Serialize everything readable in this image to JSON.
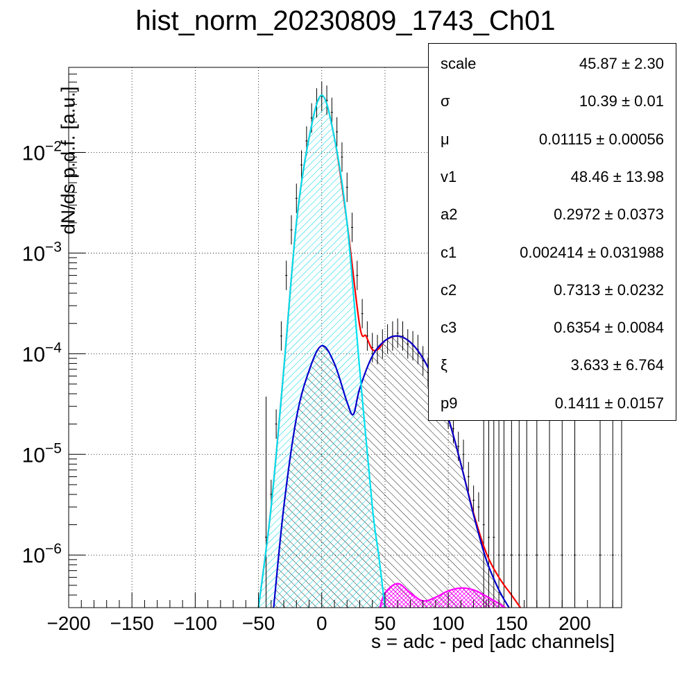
{
  "title": "hist_norm_20230809_1743_Ch01",
  "chart_data": {
    "type": "area",
    "title": "hist_norm_20230809_1743_Ch01",
    "xlabel": "s = adc - ped [adc channels]",
    "ylabel": "dN/ds p.d.f. [a.u.]",
    "xlim": [
      -200,
      237
    ],
    "ylim": [
      3e-07,
      0.07
    ],
    "yscale": "log",
    "grid": true,
    "x_ticks": [
      -200,
      -150,
      -100,
      -50,
      0,
      50,
      100,
      150,
      200
    ],
    "x_tick_labels": [
      "−200",
      "−150",
      "−100",
      "−50",
      "0",
      "50",
      "100",
      "150",
      "200"
    ],
    "y_ticks": [
      1e-06,
      1e-05,
      0.0001,
      0.001,
      0.01
    ],
    "y_tick_labels": [
      {
        "base": "10",
        "exp": "−6"
      },
      {
        "base": "10",
        "exp": "−5"
      },
      {
        "base": "10",
        "exp": "−4"
      },
      {
        "base": "10",
        "exp": "−3"
      },
      {
        "base": "10",
        "exp": "−2"
      }
    ],
    "colors": {
      "total_fit": "#ff0000",
      "pedestal": "#00e0f0",
      "signal": "#0000cc",
      "secondary": "#ff00ff",
      "data": "#000000"
    },
    "series": [
      {
        "key": "pedestal",
        "x": [
          -50,
          -40,
          -30,
          -20,
          -10,
          0,
          10,
          20,
          30,
          40,
          45,
          50
        ],
        "y": [
          3e-07,
          3e-06,
          7e-05,
          0.002,
          0.014,
          0.037,
          0.014,
          0.002,
          7e-05,
          3e-06,
          1e-06,
          3e-07
        ]
      },
      {
        "key": "signal",
        "x": [
          -38,
          -30,
          -20,
          -10,
          0,
          10,
          20,
          25,
          30,
          40,
          50,
          60,
          70,
          80,
          90,
          100,
          110,
          120,
          130,
          140,
          148
        ],
        "y": [
          3e-07,
          3e-06,
          2.3e-05,
          6.8e-05,
          0.00012,
          8e-05,
          3.3e-05,
          2.5e-05,
          4.5e-05,
          9.5e-05,
          0.000135,
          0.00015,
          0.00013,
          9e-05,
          5e-05,
          2.3e-05,
          8e-06,
          2.5e-06,
          9e-07,
          4.5e-07,
          3e-07
        ]
      },
      {
        "key": "secondary",
        "x": [
          46,
          50,
          60,
          70,
          80,
          90,
          100,
          110,
          120,
          130,
          140,
          145
        ],
        "y": [
          3e-07,
          4.2e-07,
          5.2e-07,
          4.2e-07,
          3.5e-07,
          3.8e-07,
          4.4e-07,
          4.7e-07,
          4.5e-07,
          3.9e-07,
          3.3e-07,
          3e-07
        ]
      },
      {
        "key": "total_fit",
        "x": [
          -50,
          -40,
          -30,
          -20,
          -10,
          0,
          10,
          20,
          30,
          35,
          40,
          45,
          50,
          60,
          70,
          80,
          90,
          100,
          110,
          120,
          130,
          140,
          150,
          157
        ],
        "y": [
          3e-07,
          3e-06,
          7e-05,
          0.002,
          0.014,
          0.037,
          0.014,
          0.002,
          0.00019,
          0.00015,
          0.00011,
          0.000112,
          0.000135,
          0.00015,
          0.00013,
          9e-05,
          5e-05,
          2.3e-05,
          8e-06,
          2.6e-06,
          1.05e-06,
          6e-07,
          4e-07,
          3e-07
        ]
      }
    ],
    "data_points": {
      "x": [
        -44,
        -40,
        -36,
        -32,
        -28,
        -24,
        -20,
        -16,
        -12,
        -8,
        -4,
        0,
        4,
        8,
        12,
        16,
        20,
        24,
        28,
        32,
        36,
        40,
        44,
        48,
        52,
        56,
        60,
        64,
        68,
        72,
        76,
        80,
        84,
        88,
        92,
        96,
        100,
        104,
        108,
        112,
        116,
        120,
        124,
        128,
        132,
        136,
        140,
        144,
        150,
        156,
        162,
        170,
        180,
        190,
        200,
        220,
        230
      ],
      "y": [
        1.5e-06,
        4e-06,
        2e-05,
        0.00015,
        0.0006,
        0.0017,
        0.0035,
        0.0075,
        0.013,
        0.022,
        0.031,
        0.036,
        0.033,
        0.025,
        0.016,
        0.009,
        0.0045,
        0.0018,
        0.0006,
        0.00025,
        0.00015,
        0.000115,
        0.00011,
        0.000125,
        0.00014,
        0.00015,
        0.00016,
        0.00015,
        0.000125,
        0.00012,
        0.00011,
        8.5e-05,
        6.5e-05,
        5.5e-05,
        4.5e-05,
        3.5e-05,
        2.5e-05,
        1.8e-05,
        1.2e-05,
        1e-05,
        6e-06,
        3.5e-06,
        3e-06,
        2e-06,
        1.5e-06,
        1.5e-06,
        1e-06,
        1e-06,
        1e-06,
        1e-06,
        1e-06,
        1e-06,
        1e-06,
        1e-06,
        1e-06,
        1e-06,
        1e-06
      ]
    }
  },
  "stats": {
    "rows": [
      {
        "name": "scale",
        "value": "45.87",
        "error": "2.30"
      },
      {
        "name": "σ",
        "value": "10.39",
        "error": "0.01"
      },
      {
        "name": "μ",
        "value": "0.01115",
        "error": "0.00056"
      },
      {
        "name": "v1",
        "value": "48.46",
        "error": "13.98"
      },
      {
        "name": "a2",
        "value": "0.2972",
        "error": "0.0373"
      },
      {
        "name": "c1",
        "value": "0.002414",
        "error": "0.031988"
      },
      {
        "name": "c2",
        "value": "0.7313",
        "error": "0.0232"
      },
      {
        "name": "c3",
        "value": "0.6354",
        "error": "0.0084"
      },
      {
        "name": "ξ",
        "value": "3.633",
        "error": "6.764"
      },
      {
        "name": "p9",
        "value": "0.1411",
        "error": "0.0157"
      }
    ]
  }
}
